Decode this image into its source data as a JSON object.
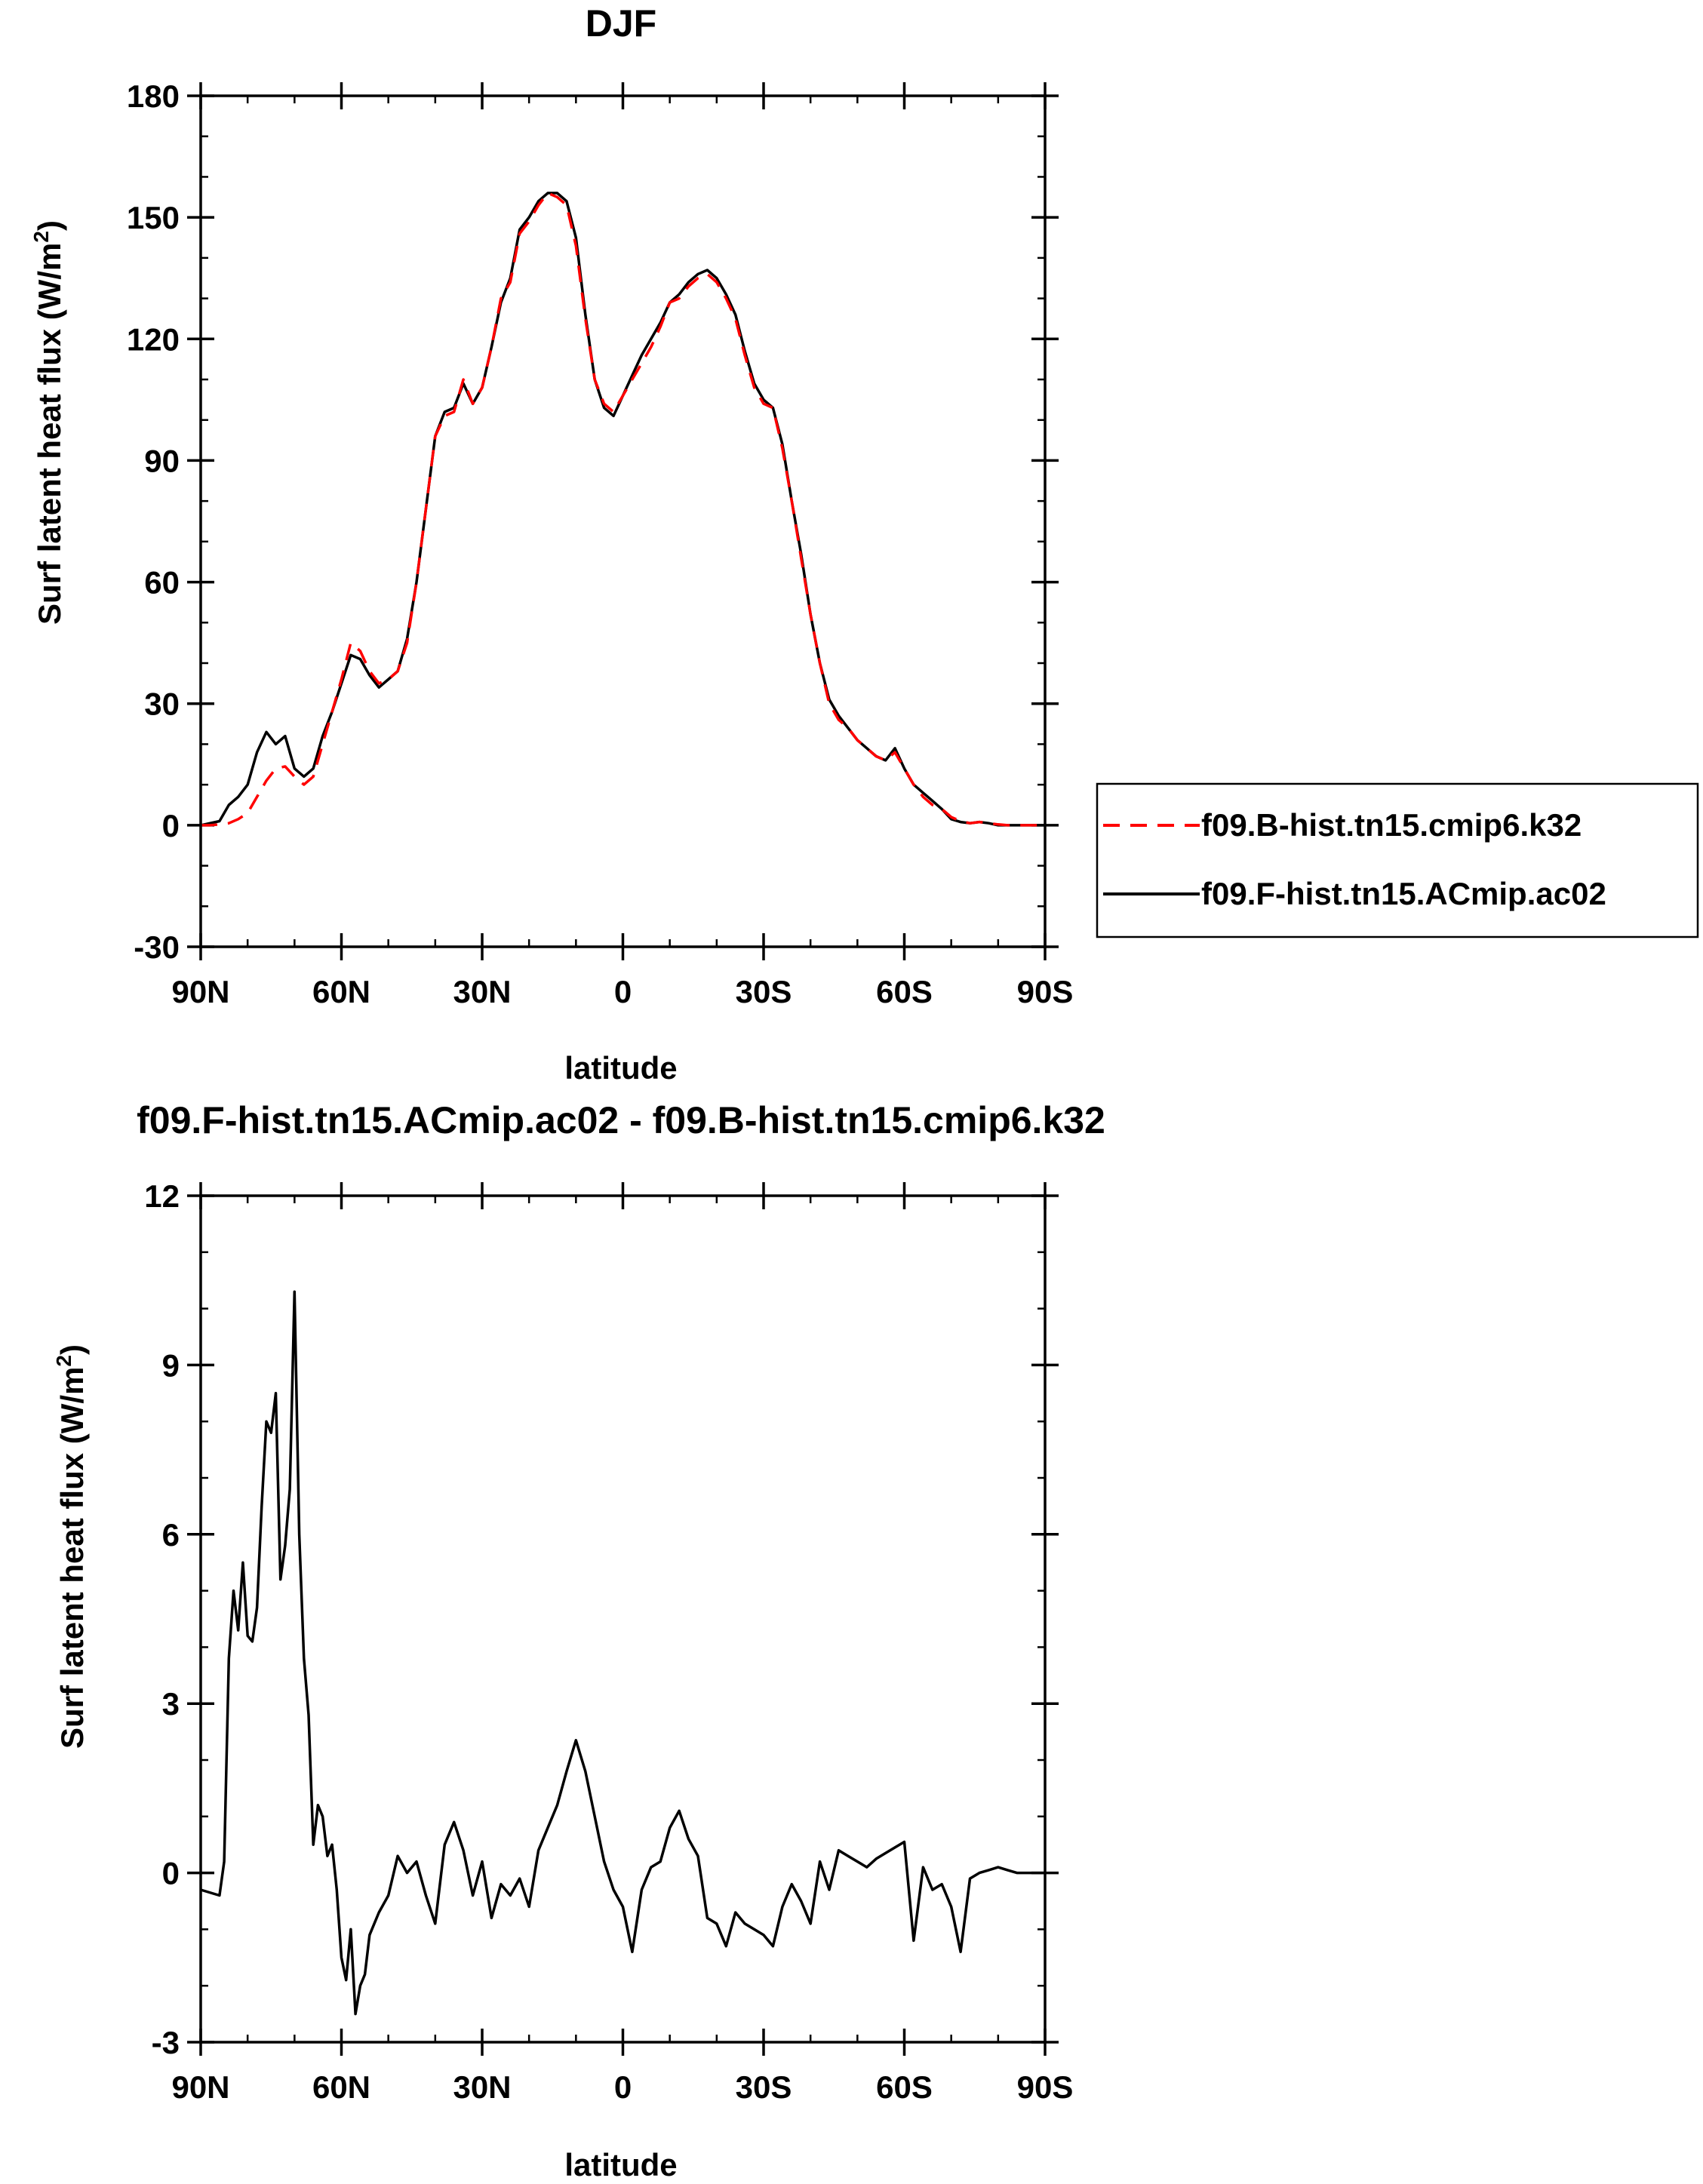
{
  "chart_data": [
    {
      "type": "line",
      "title": "DJF",
      "xlabel": "latitude",
      "ylabel": "Surf latent heat flux (W/m",
      "ylabel_sup": "2",
      "ylabel_close": ")",
      "xlim": [
        90,
        -90
      ],
      "ylim": [
        -30,
        180
      ],
      "xticks": [
        90,
        60,
        30,
        0,
        -30,
        -60,
        -90
      ],
      "xticklabels": [
        "90N",
        "60N",
        "30N",
        "0",
        "30S",
        "60S",
        "90S"
      ],
      "yticks": [
        -30,
        0,
        30,
        60,
        90,
        120,
        150,
        180
      ],
      "yticklabels": [
        "-30",
        "0",
        "30",
        "60",
        "90",
        "120",
        "150",
        "180"
      ],
      "legend_position": "right",
      "series": [
        {
          "name": "f09.B-hist.tn15.cmip6.k32",
          "color": "#ff0000",
          "style": "dashed",
          "x": [
            90,
            88,
            86,
            84,
            82,
            80,
            78,
            76,
            74,
            72,
            70,
            68,
            66,
            64,
            62,
            60,
            58,
            56,
            54,
            52,
            50,
            48,
            46,
            44,
            42,
            40,
            38,
            36,
            34,
            32,
            30,
            28,
            26,
            24,
            22,
            20,
            18,
            16,
            14,
            12,
            10,
            8,
            6,
            4,
            2,
            0,
            -2,
            -4,
            -6,
            -8,
            -10,
            -12,
            -14,
            -16,
            -18,
            -20,
            -22,
            -24,
            -26,
            -28,
            -30,
            -32,
            -34,
            -36,
            -38,
            -40,
            -42,
            -44,
            -46,
            -48,
            -50,
            -52,
            -54,
            -56,
            -58,
            -60,
            -62,
            -64,
            -66,
            -68,
            -70,
            -72,
            -74,
            -76,
            -78,
            -80,
            -82,
            -84,
            -86,
            -88,
            -90
          ],
          "y": [
            0,
            0,
            0.2,
            0.5,
            1.5,
            3,
            7,
            11,
            14,
            14.5,
            12,
            10,
            12,
            20,
            28,
            36,
            45,
            43,
            38,
            35,
            36,
            38,
            45,
            60,
            78,
            96,
            101,
            102,
            110,
            104,
            108,
            118,
            130,
            134,
            146,
            149,
            153,
            156,
            155,
            153,
            143,
            125,
            110,
            104,
            102,
            106,
            110,
            114,
            118,
            123,
            129,
            130,
            133,
            135,
            136,
            134,
            130,
            125,
            116,
            108,
            104,
            103,
            93,
            80,
            66,
            52,
            40,
            30,
            26,
            24,
            21,
            19,
            17,
            16,
            18,
            14,
            10,
            7,
            5,
            4,
            2,
            1,
            0.5,
            0.8,
            0.5,
            0.2,
            0,
            0,
            0,
            0,
            0
          ]
        },
        {
          "name": "f09.F-hist.tn15.ACmip.ac02",
          "color": "#000000",
          "style": "solid",
          "x": [
            90,
            88,
            86,
            84,
            82,
            80,
            78,
            76,
            74,
            72,
            70,
            68,
            66,
            64,
            62,
            60,
            58,
            56,
            54,
            52,
            50,
            48,
            46,
            44,
            42,
            40,
            38,
            36,
            34,
            32,
            30,
            28,
            26,
            24,
            22,
            20,
            18,
            16,
            14,
            12,
            10,
            8,
            6,
            4,
            2,
            0,
            -2,
            -4,
            -6,
            -8,
            -10,
            -12,
            -14,
            -16,
            -18,
            -20,
            -22,
            -24,
            -26,
            -28,
            -30,
            -32,
            -34,
            -36,
            -38,
            -40,
            -42,
            -44,
            -46,
            -48,
            -50,
            -52,
            -54,
            -56,
            -58,
            -60,
            -62,
            -64,
            -66,
            -68,
            -70,
            -72,
            -74,
            -76,
            -78,
            -80,
            -82,
            -84,
            -86,
            -88,
            -90
          ],
          "y": [
            0,
            0.5,
            1,
            5,
            7,
            10,
            18,
            23,
            20,
            22,
            14,
            12,
            14,
            22,
            28,
            35,
            42,
            41,
            37,
            34,
            36,
            38,
            46,
            60,
            78,
            96,
            102,
            103,
            109,
            104,
            108,
            118,
            129,
            135,
            147,
            150,
            154,
            156,
            156,
            154,
            145,
            126,
            110,
            103,
            101,
            106,
            111,
            116,
            120,
            124,
            129,
            131,
            134,
            136,
            137,
            135,
            131,
            126,
            117,
            109,
            105,
            103,
            94,
            80,
            67,
            52,
            40,
            31,
            27,
            24,
            21,
            19,
            17,
            16,
            19,
            14,
            10,
            8,
            6,
            4,
            1.5,
            0.8,
            0.5,
            0.8,
            0.5,
            0,
            0,
            0,
            0,
            0,
            0
          ]
        }
      ]
    },
    {
      "type": "line",
      "title": "f09.F-hist.tn15.ACmip.ac02 - f09.B-hist.tn15.cmip6.k32",
      "xlabel": "latitude",
      "ylabel": "Surf latent heat flux (W/m",
      "ylabel_sup": "2",
      "ylabel_close": ")",
      "xlim": [
        90,
        -90
      ],
      "ylim": [
        -3,
        12
      ],
      "xticks": [
        90,
        60,
        30,
        0,
        -30,
        -60,
        -90
      ],
      "xticklabels": [
        "90N",
        "60N",
        "30N",
        "0",
        "30S",
        "60S",
        "90S"
      ],
      "yticks": [
        -3,
        0,
        3,
        6,
        9,
        12
      ],
      "yticklabels": [
        "-3",
        "0",
        "3",
        "6",
        "9",
        "12"
      ],
      "series": [
        {
          "color": "#000000",
          "style": "solid",
          "x": [
            90,
            86,
            85,
            84,
            83,
            82,
            81,
            80,
            79,
            78,
            77,
            76,
            75,
            74,
            73,
            72,
            71,
            70,
            69,
            68,
            67,
            66,
            65,
            64,
            63,
            62,
            61,
            60,
            59,
            58,
            57,
            56,
            55,
            54,
            52,
            50,
            48,
            46,
            44,
            42,
            40,
            38,
            36,
            34,
            32,
            30,
            28,
            26,
            24,
            22,
            20,
            18,
            16,
            14,
            12,
            10,
            8,
            6,
            4,
            2,
            0,
            -2,
            -4,
            -6,
            -8,
            -10,
            -12,
            -14,
            -16,
            -18,
            -20,
            -22,
            -24,
            -26,
            -28,
            -30,
            -32,
            -34,
            -36,
            -38,
            -40,
            -42,
            -44,
            -46,
            -48,
            -50,
            -52,
            -54,
            -56,
            -58,
            -60,
            -62,
            -64,
            -66,
            -68,
            -70,
            -72,
            -74,
            -76,
            -78,
            -80,
            -82,
            -84,
            -86,
            -88,
            -90
          ],
          "y": [
            -0.3,
            -0.4,
            0.2,
            3.8,
            5,
            4.3,
            5.5,
            4.2,
            4.1,
            4.7,
            6.5,
            8,
            7.8,
            8.5,
            5.2,
            5.8,
            6.8,
            10.3,
            6,
            3.8,
            2.8,
            0.5,
            1.2,
            1,
            0.3,
            0.5,
            -0.3,
            -1.5,
            -1.9,
            -1,
            -2.5,
            -2,
            -1.8,
            -1.1,
            -0.7,
            -0.4,
            0.3,
            0,
            0.2,
            -0.4,
            -0.9,
            0.5,
            0.9,
            0.4,
            -0.4,
            0.2,
            -0.8,
            -0.2,
            -0.4,
            -0.1,
            -0.6,
            0.4,
            0.8,
            1.2,
            1.8,
            2.35,
            1.8,
            1,
            0.2,
            -0.3,
            -0.6,
            -1.4,
            -0.3,
            0.1,
            0.2,
            0.8,
            1.1,
            0.6,
            0.3,
            -0.8,
            -0.9,
            -1.3,
            -0.7,
            -0.9,
            -1,
            -1.1,
            -1.3,
            -0.6,
            -0.2,
            -0.5,
            -0.9,
            0.2,
            -0.3,
            0.4,
            0.3,
            0.2,
            0.1,
            0.25,
            0.35,
            0.45,
            0.55,
            -1.2,
            0.1,
            -0.3,
            -0.2,
            -0.6,
            -1.4,
            -0.1,
            0,
            0.05,
            0.1,
            0.05,
            0,
            0,
            0,
            0
          ]
        }
      ]
    }
  ]
}
